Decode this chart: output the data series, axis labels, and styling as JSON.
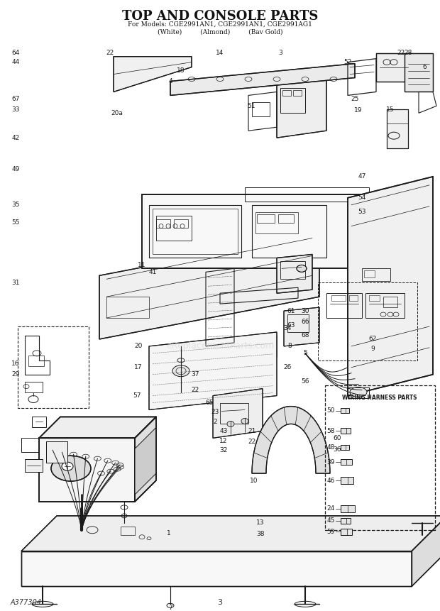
{
  "title": "TOP AND CONSOLE PARTS",
  "subtitle_line1": "For Models: CGE2991AN1, CGE2991AN1, CGE2991AG1",
  "subtitle_line2": "(White)         (Almond)         (Bav Gold)",
  "footer_left": "A377304",
  "footer_center": "3",
  "bg_color": "#ffffff",
  "dc": "#1a1a1a",
  "watermark": "eReplacementParts.com"
}
